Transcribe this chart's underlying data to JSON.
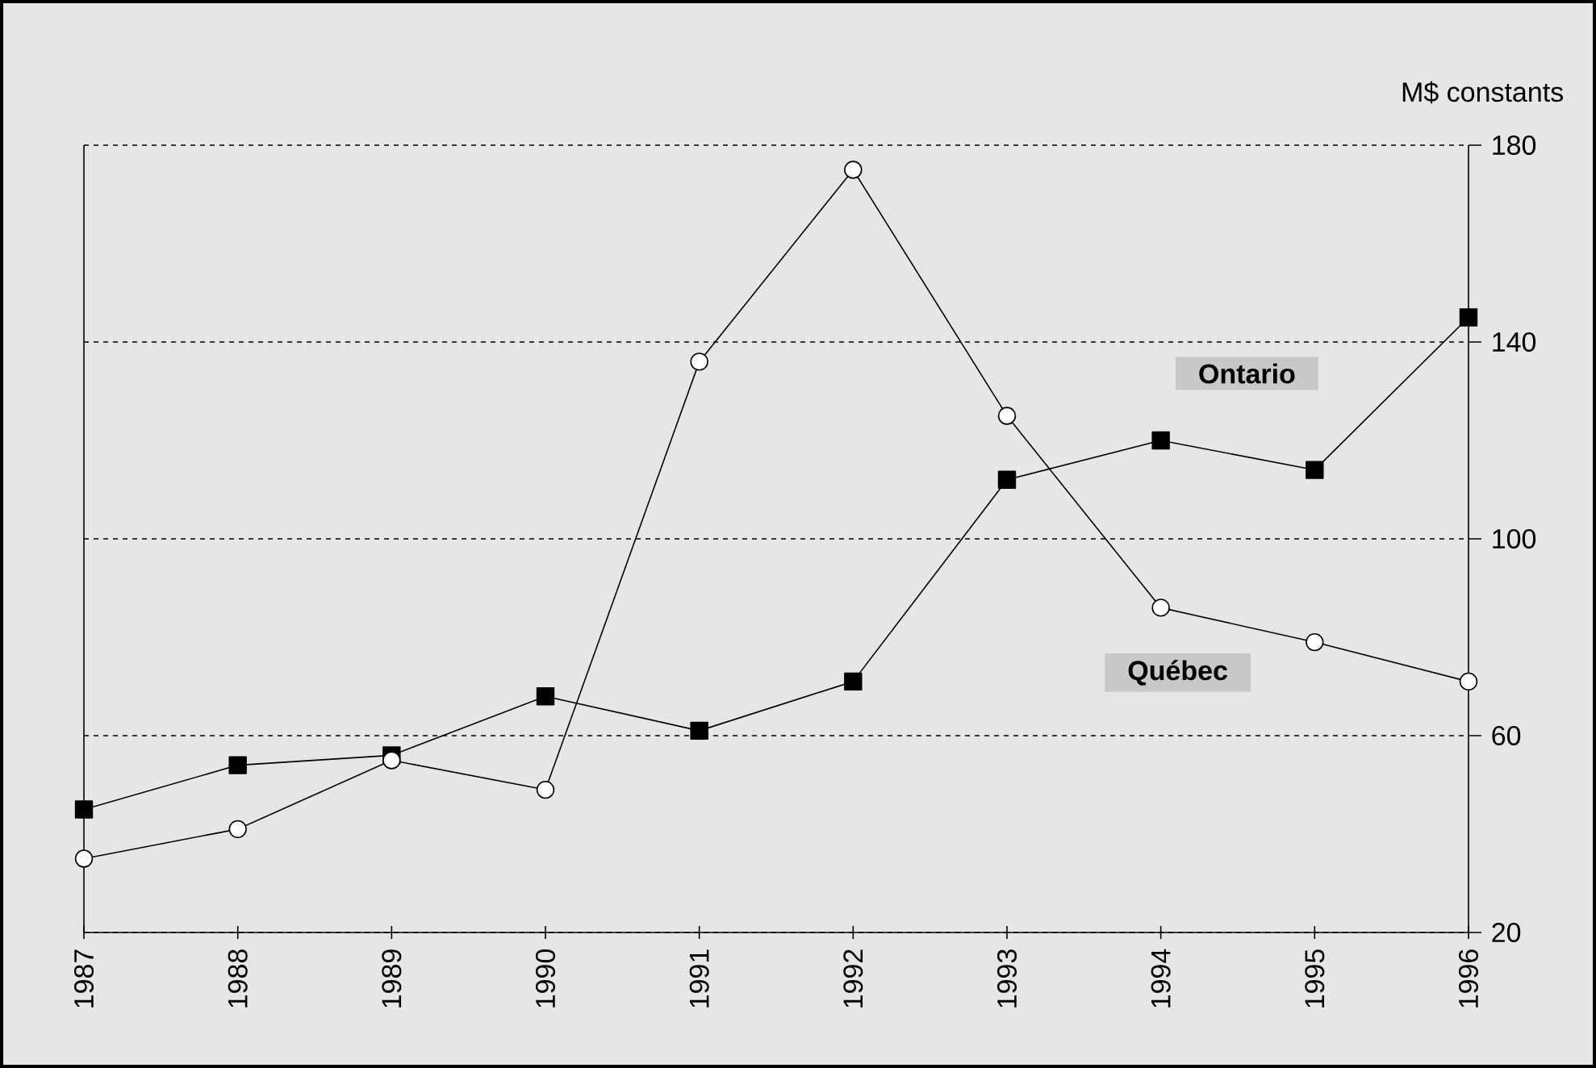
{
  "chart_data": {
    "type": "line",
    "ylabel": "M$ constants",
    "categories": [
      "1987",
      "1988",
      "1989",
      "1990",
      "1991",
      "1992",
      "1993",
      "1994",
      "1995",
      "1996"
    ],
    "series": [
      {
        "name": "Ontario",
        "color": "#000000",
        "marker": "square",
        "values": [
          45,
          54,
          56,
          68,
          61,
          71,
          112,
          120,
          114,
          145
        ]
      },
      {
        "name": "Québec",
        "color": "#000000",
        "marker": "circle",
        "values": [
          35,
          41,
          55,
          49,
          136,
          175,
          125,
          86,
          79,
          71
        ]
      }
    ],
    "ylim": [
      20,
      180
    ],
    "yticks": [
      20,
      60,
      100,
      140,
      180
    ],
    "grid": "y"
  }
}
